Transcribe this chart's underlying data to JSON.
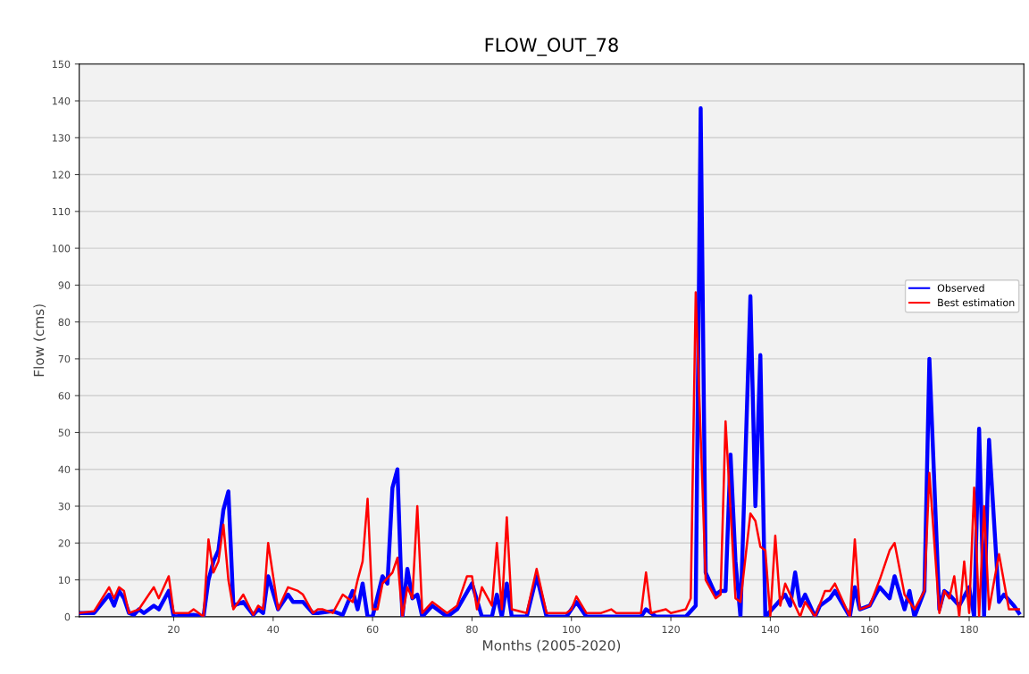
{
  "chart_data": {
    "type": "line",
    "title": "FLOW_OUT_78",
    "xlabel": "Months (2005-2020)",
    "ylabel": "Flow (cms)",
    "xlim": [
      1,
      191
    ],
    "xticks": [
      20,
      40,
      60,
      80,
      100,
      120,
      140,
      160,
      180
    ],
    "ylim": [
      0,
      150
    ],
    "yticks": [
      0,
      10,
      20,
      30,
      40,
      50,
      60,
      70,
      80,
      90,
      100,
      110,
      120,
      130,
      140,
      150
    ],
    "grid": "y",
    "legend": "right",
    "marker": "none",
    "line_style": "solid",
    "series": [
      {
        "name": "Observed",
        "color": "#0000ff",
        "x": [
          1,
          4,
          7,
          8,
          9,
          10,
          11,
          12,
          13,
          14,
          16,
          17,
          19,
          20,
          24,
          26,
          27,
          28,
          29,
          30,
          31,
          32,
          34,
          36,
          37,
          38,
          39,
          41,
          43,
          44,
          46,
          48,
          49,
          52,
          54,
          56,
          57,
          58,
          59,
          60,
          62,
          63,
          64,
          65,
          66,
          67,
          68,
          69,
          70,
          72,
          75,
          77,
          80,
          82,
          84,
          85,
          86,
          87,
          88,
          91,
          93,
          95,
          99,
          101,
          103,
          107,
          114,
          115,
          117,
          123,
          125,
          126,
          127,
          129,
          130,
          131,
          132,
          133,
          134,
          136,
          137,
          138,
          139,
          141,
          143,
          144,
          145,
          146,
          147,
          149,
          150,
          152,
          153,
          156,
          157,
          158,
          160,
          162,
          164,
          165,
          167,
          168,
          169,
          171,
          172,
          174,
          175,
          176,
          178,
          180,
          181,
          182,
          183,
          184,
          186,
          187,
          189,
          190
        ],
        "values": [
          1,
          1,
          6,
          3,
          7,
          5,
          1,
          0.5,
          2,
          1,
          3,
          2,
          7,
          0,
          0.5,
          0,
          10,
          15,
          18,
          29,
          34,
          3,
          4,
          0.5,
          2,
          1,
          11,
          2,
          6,
          4,
          4,
          1,
          1,
          1.5,
          0.5,
          7,
          2,
          9,
          0,
          0,
          11,
          9,
          35,
          40,
          0,
          13,
          5,
          6,
          0,
          3,
          0,
          2,
          9,
          0,
          0,
          6,
          0,
          9,
          0,
          0,
          11,
          0,
          0,
          4,
          0,
          0,
          0,
          2,
          0,
          0,
          3,
          138,
          12,
          6,
          7,
          7,
          44,
          15,
          0,
          87,
          30,
          71,
          0,
          3,
          6,
          3,
          12,
          3,
          6,
          0,
          3,
          5,
          7,
          0,
          8,
          2,
          3,
          8,
          5,
          11,
          2,
          7,
          0,
          7,
          70,
          2,
          7,
          6,
          3,
          8,
          0,
          51,
          0,
          48,
          4,
          6,
          3,
          1
        ]
      },
      {
        "name": "Best estimation",
        "color": "#ff0000",
        "x": [
          1,
          4,
          7,
          8,
          9,
          10,
          11,
          13,
          16,
          17,
          19,
          20,
          23,
          24,
          26,
          27,
          28,
          29,
          30,
          31,
          32,
          34,
          36,
          37,
          38,
          39,
          41,
          43,
          45,
          46,
          48,
          49,
          50,
          52,
          54,
          56,
          57,
          58,
          59,
          60,
          61,
          62,
          64,
          65,
          66,
          67,
          68,
          69,
          70,
          72,
          75,
          77,
          79,
          80,
          81,
          82,
          84,
          85,
          86,
          87,
          88,
          91,
          93,
          95,
          99,
          100,
          101,
          103,
          106,
          108,
          109,
          114,
          115,
          116,
          119,
          120,
          123,
          124,
          125,
          127,
          129,
          130,
          131,
          133,
          134,
          136,
          137,
          138,
          139,
          140,
          141,
          142,
          143,
          145,
          146,
          147,
          149,
          151,
          152,
          153,
          156,
          157,
          158,
          160,
          162,
          164,
          165,
          167,
          169,
          171,
          172,
          174,
          175,
          176,
          177,
          178,
          179,
          180,
          181,
          182,
          183,
          184,
          186,
          188,
          189,
          190
        ],
        "values": [
          1,
          1.5,
          8,
          5,
          8,
          7,
          1,
          2,
          8,
          5,
          11,
          1,
          1,
          2,
          0,
          21,
          12,
          15,
          25,
          10,
          2,
          6,
          0.5,
          3,
          2,
          20,
          2,
          8,
          7,
          6,
          1,
          2,
          2,
          1,
          6,
          4,
          10,
          15,
          32,
          2,
          2,
          9,
          12,
          16,
          0,
          8,
          5,
          30,
          1,
          4,
          1,
          3,
          11,
          11,
          2,
          8,
          3,
          20,
          2,
          27,
          2,
          1,
          13,
          1,
          1,
          2,
          5.5,
          1,
          1,
          2,
          1,
          1,
          12,
          1,
          2,
          1,
          2,
          5,
          88,
          10,
          5,
          6,
          53,
          5,
          4,
          28,
          26,
          19,
          18,
          0,
          22,
          3,
          9,
          3,
          0,
          4,
          0,
          7,
          7,
          9,
          0,
          21,
          2,
          3,
          10,
          18,
          20,
          6,
          2,
          7,
          39,
          1,
          7,
          5,
          11,
          0,
          15,
          1,
          35,
          0,
          30,
          2,
          17,
          2,
          2,
          2
        ]
      }
    ]
  }
}
